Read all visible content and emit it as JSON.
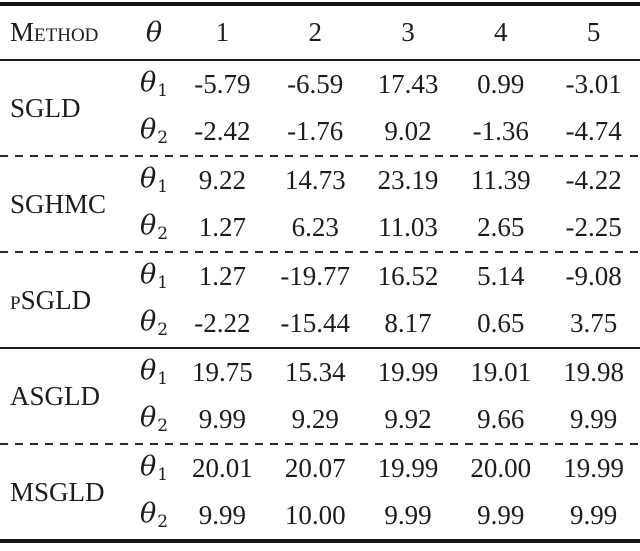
{
  "table": {
    "header": {
      "method_label": "Method",
      "theta_label": "θ",
      "cols": [
        "1",
        "2",
        "3",
        "4",
        "5"
      ]
    },
    "blocks": [
      {
        "method": "SGLD",
        "rows": [
          {
            "sym": "θ",
            "sub": "1",
            "values": [
              "-5.79",
              "-6.59",
              "17.43",
              "0.99",
              "-3.01"
            ]
          },
          {
            "sym": "θ",
            "sub": "2",
            "values": [
              "-2.42",
              "-1.76",
              "9.02",
              "-1.36",
              "-4.74"
            ]
          }
        ]
      },
      {
        "method": "SGHMC",
        "rows": [
          {
            "sym": "θ",
            "sub": "1",
            "values": [
              "9.22",
              "14.73",
              "23.19",
              "11.39",
              "-4.22"
            ]
          },
          {
            "sym": "θ",
            "sub": "2",
            "values": [
              "1.27",
              "6.23",
              "11.03",
              "2.65",
              "-2.25"
            ]
          }
        ]
      },
      {
        "method": "pSGLD",
        "rows": [
          {
            "sym": "θ",
            "sub": "1",
            "values": [
              "1.27",
              "-19.77",
              "16.52",
              "5.14",
              "-9.08"
            ]
          },
          {
            "sym": "θ",
            "sub": "2",
            "values": [
              "-2.22",
              "-15.44",
              "8.17",
              "0.65",
              "3.75"
            ]
          }
        ]
      },
      {
        "method": "ASGLD",
        "rows": [
          {
            "sym": "θ",
            "sub": "1",
            "values": [
              "19.75",
              "15.34",
              "19.99",
              "19.01",
              "19.98"
            ]
          },
          {
            "sym": "θ",
            "sub": "2",
            "values": [
              "9.99",
              "9.29",
              "9.92",
              "9.66",
              "9.99"
            ]
          }
        ]
      },
      {
        "method": "MSGLD",
        "rows": [
          {
            "sym": "θ",
            "sub": "1",
            "values": [
              "20.01",
              "20.07",
              "19.99",
              "20.00",
              "19.99"
            ]
          },
          {
            "sym": "θ",
            "sub": "2",
            "values": [
              "9.99",
              "10.00",
              "9.99",
              "9.99",
              "9.99"
            ]
          }
        ]
      }
    ]
  },
  "colors": {
    "text": "#1c1c1c",
    "rule": "#151515",
    "background": "#ffffff"
  }
}
